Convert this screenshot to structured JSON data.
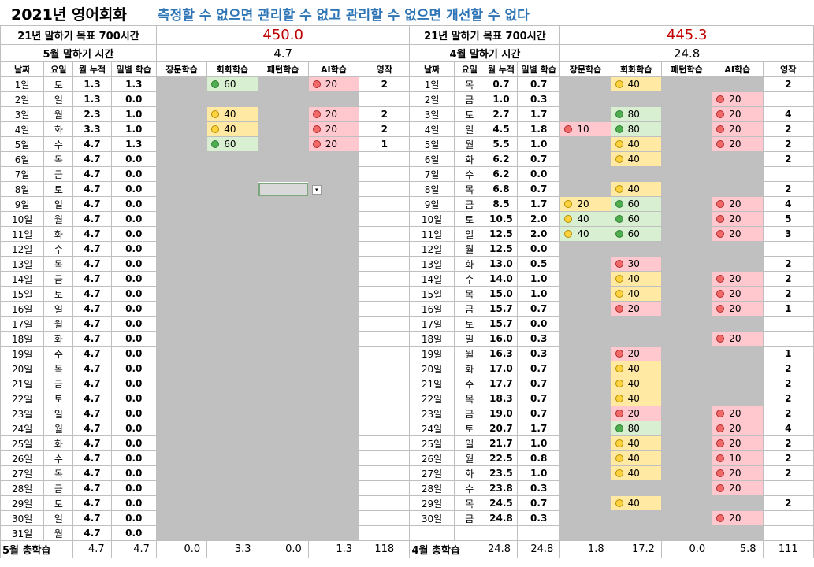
{
  "title": {
    "main": "2021년 영어회화",
    "motto": "측정할 수 없으면 관리할 수 없고 관리할 수 없으면 개선할 수 없다"
  },
  "may": {
    "goal_label": "21년 말하기 목표 700시간",
    "goal_value": "450.0",
    "month_label": "5월 말하기 시간",
    "month_value": "4.7",
    "headers": [
      "날짜",
      "요일",
      "월 누적",
      "일별 학습",
      "장문학습",
      "회화학습",
      "패턴학습",
      "AI학습",
      "영작"
    ],
    "rows": [
      [
        "1일",
        "토",
        "1.3",
        "1.3",
        "",
        {
          "c": "green",
          "v": "60"
        },
        "",
        {
          "c": "red",
          "v": "20"
        },
        "2"
      ],
      [
        "2일",
        "일",
        "1.3",
        "0.0",
        "",
        "",
        "",
        "",
        ""
      ],
      [
        "3일",
        "월",
        "2.3",
        "1.0",
        "",
        {
          "c": "yellow",
          "v": "40"
        },
        "",
        {
          "c": "red",
          "v": "20"
        },
        "2"
      ],
      [
        "4일",
        "화",
        "3.3",
        "1.0",
        "",
        {
          "c": "yellow",
          "v": "40"
        },
        "",
        {
          "c": "red",
          "v": "20"
        },
        "2"
      ],
      [
        "5일",
        "수",
        "4.7",
        "1.3",
        "",
        {
          "c": "green",
          "v": "60"
        },
        "",
        {
          "c": "red",
          "v": "20"
        },
        "1"
      ],
      [
        "6일",
        "목",
        "4.7",
        "0.0",
        "",
        "",
        "",
        "",
        ""
      ],
      [
        "7일",
        "금",
        "4.7",
        "0.0",
        "",
        "",
        "",
        "",
        ""
      ],
      [
        "8일",
        "토",
        "4.7",
        "0.0",
        "",
        "",
        "",
        "",
        ""
      ],
      [
        "9일",
        "일",
        "4.7",
        "0.0",
        "",
        "",
        "",
        "",
        ""
      ],
      [
        "10일",
        "월",
        "4.7",
        "0.0",
        "",
        "",
        "",
        "",
        ""
      ],
      [
        "11일",
        "화",
        "4.7",
        "0.0",
        "",
        "",
        "",
        "",
        ""
      ],
      [
        "12일",
        "수",
        "4.7",
        "0.0",
        "",
        "",
        "",
        "",
        ""
      ],
      [
        "13일",
        "목",
        "4.7",
        "0.0",
        "",
        "",
        "",
        "",
        ""
      ],
      [
        "14일",
        "금",
        "4.7",
        "0.0",
        "",
        "",
        "",
        "",
        ""
      ],
      [
        "15일",
        "토",
        "4.7",
        "0.0",
        "",
        "",
        "",
        "",
        ""
      ],
      [
        "16일",
        "일",
        "4.7",
        "0.0",
        "",
        "",
        "",
        "",
        ""
      ],
      [
        "17일",
        "월",
        "4.7",
        "0.0",
        "",
        "",
        "",
        "",
        ""
      ],
      [
        "18일",
        "화",
        "4.7",
        "0.0",
        "",
        "",
        "",
        "",
        ""
      ],
      [
        "19일",
        "수",
        "4.7",
        "0.0",
        "",
        "",
        "",
        "",
        ""
      ],
      [
        "20일",
        "목",
        "4.7",
        "0.0",
        "",
        "",
        "",
        "",
        ""
      ],
      [
        "21일",
        "금",
        "4.7",
        "0.0",
        "",
        "",
        "",
        "",
        ""
      ],
      [
        "22일",
        "토",
        "4.7",
        "0.0",
        "",
        "",
        "",
        "",
        ""
      ],
      [
        "23일",
        "일",
        "4.7",
        "0.0",
        "",
        "",
        "",
        "",
        ""
      ],
      [
        "24일",
        "월",
        "4.7",
        "0.0",
        "",
        "",
        "",
        "",
        ""
      ],
      [
        "25일",
        "화",
        "4.7",
        "0.0",
        "",
        "",
        "",
        "",
        ""
      ],
      [
        "26일",
        "수",
        "4.7",
        "0.0",
        "",
        "",
        "",
        "",
        ""
      ],
      [
        "27일",
        "목",
        "4.7",
        "0.0",
        "",
        "",
        "",
        "",
        ""
      ],
      [
        "28일",
        "금",
        "4.7",
        "0.0",
        "",
        "",
        "",
        "",
        ""
      ],
      [
        "29일",
        "토",
        "4.7",
        "0.0",
        "",
        "",
        "",
        "",
        ""
      ],
      [
        "30일",
        "일",
        "4.7",
        "0.0",
        "",
        "",
        "",
        "",
        ""
      ],
      [
        "31일",
        "월",
        "4.7",
        "0.0",
        "",
        "",
        "",
        "",
        ""
      ]
    ],
    "totals": [
      "5월 총학습",
      "4.7",
      "4.7",
      "0.0",
      "3.3",
      "0.0",
      "1.3",
      "118"
    ]
  },
  "april": {
    "goal_label": "21년 말하기 목표 700시간",
    "goal_value": "445.3",
    "month_label": "4월 말하기 시간",
    "month_value": "24.8",
    "headers": [
      "날짜",
      "요일",
      "월 누적",
      "일별 학습",
      "장문학습",
      "회화학습",
      "패턴학습",
      "AI학습",
      "영작"
    ],
    "rows": [
      [
        "1일",
        "목",
        "0.7",
        "0.7",
        "",
        {
          "c": "yellow",
          "v": "40"
        },
        "",
        "",
        "2"
      ],
      [
        "2일",
        "금",
        "1.0",
        "0.3",
        "",
        "",
        "",
        {
          "c": "red",
          "v": "20"
        },
        ""
      ],
      [
        "3일",
        "토",
        "2.7",
        "1.7",
        "",
        {
          "c": "green",
          "v": "80"
        },
        "",
        {
          "c": "red",
          "v": "20"
        },
        "4"
      ],
      [
        "4일",
        "일",
        "4.5",
        "1.8",
        {
          "c": "red",
          "v": "10",
          "bg": "pink"
        },
        {
          "c": "green",
          "v": "80"
        },
        "",
        {
          "c": "red",
          "v": "20"
        },
        "2"
      ],
      [
        "5일",
        "월",
        "5.5",
        "1.0",
        "",
        {
          "c": "yellow",
          "v": "40"
        },
        "",
        {
          "c": "red",
          "v": "20"
        },
        "2"
      ],
      [
        "6일",
        "화",
        "6.2",
        "0.7",
        "",
        {
          "c": "yellow",
          "v": "40"
        },
        "",
        "",
        "2"
      ],
      [
        "7일",
        "수",
        "6.2",
        "0.0",
        "",
        "",
        "",
        "",
        ""
      ],
      [
        "8일",
        "목",
        "6.8",
        "0.7",
        "",
        {
          "c": "yellow",
          "v": "40"
        },
        "",
        "",
        "2"
      ],
      [
        "9일",
        "금",
        "8.5",
        "1.7",
        {
          "c": "yellow",
          "v": "20",
          "bg": "yellow"
        },
        {
          "c": "green",
          "v": "60"
        },
        "",
        {
          "c": "red",
          "v": "20"
        },
        "4"
      ],
      [
        "10일",
        "토",
        "10.5",
        "2.0",
        {
          "c": "yellow",
          "v": "40",
          "bg": "green"
        },
        {
          "c": "green",
          "v": "60"
        },
        "",
        {
          "c": "red",
          "v": "20"
        },
        "5"
      ],
      [
        "11일",
        "일",
        "12.5",
        "2.0",
        {
          "c": "yellow",
          "v": "40",
          "bg": "green"
        },
        {
          "c": "green",
          "v": "60"
        },
        "",
        {
          "c": "red",
          "v": "20"
        },
        "3"
      ],
      [
        "12일",
        "월",
        "12.5",
        "0.0",
        "",
        "",
        "",
        "",
        ""
      ],
      [
        "13일",
        "화",
        "13.0",
        "0.5",
        "",
        {
          "c": "red",
          "v": "30"
        },
        "",
        "",
        "2"
      ],
      [
        "14일",
        "수",
        "14.0",
        "1.0",
        "",
        {
          "c": "yellow",
          "v": "40"
        },
        "",
        {
          "c": "red",
          "v": "20"
        },
        "2"
      ],
      [
        "15일",
        "목",
        "15.0",
        "1.0",
        "",
        {
          "c": "yellow",
          "v": "40"
        },
        "",
        {
          "c": "red",
          "v": "20"
        },
        "2"
      ],
      [
        "16일",
        "금",
        "15.7",
        "0.7",
        "",
        {
          "c": "red",
          "v": "20"
        },
        "",
        {
          "c": "red",
          "v": "20"
        },
        "1"
      ],
      [
        "17일",
        "토",
        "15.7",
        "0.0",
        "",
        "",
        "",
        "",
        ""
      ],
      [
        "18일",
        "일",
        "16.0",
        "0.3",
        "",
        "",
        "",
        {
          "c": "red",
          "v": "20"
        },
        ""
      ],
      [
        "19일",
        "월",
        "16.3",
        "0.3",
        "",
        {
          "c": "red",
          "v": "20"
        },
        "",
        "",
        "1"
      ],
      [
        "20일",
        "화",
        "17.0",
        "0.7",
        "",
        {
          "c": "yellow",
          "v": "40"
        },
        "",
        "",
        "2"
      ],
      [
        "21일",
        "수",
        "17.7",
        "0.7",
        "",
        {
          "c": "yellow",
          "v": "40"
        },
        "",
        "",
        "2"
      ],
      [
        "22일",
        "목",
        "18.3",
        "0.7",
        "",
        {
          "c": "yellow",
          "v": "40"
        },
        "",
        "",
        "2"
      ],
      [
        "23일",
        "금",
        "19.0",
        "0.7",
        "",
        {
          "c": "red",
          "v": "20"
        },
        "",
        {
          "c": "red",
          "v": "20"
        },
        "2"
      ],
      [
        "24일",
        "토",
        "20.7",
        "1.7",
        "",
        {
          "c": "green",
          "v": "80"
        },
        "",
        {
          "c": "red",
          "v": "20"
        },
        "4"
      ],
      [
        "25일",
        "일",
        "21.7",
        "1.0",
        "",
        {
          "c": "yellow",
          "v": "40"
        },
        "",
        {
          "c": "red",
          "v": "20"
        },
        "2"
      ],
      [
        "26일",
        "월",
        "22.5",
        "0.8",
        "",
        {
          "c": "yellow",
          "v": "40"
        },
        "",
        {
          "c": "red",
          "v": "10",
          "bg": "pink"
        },
        "2"
      ],
      [
        "27일",
        "화",
        "23.5",
        "1.0",
        "",
        {
          "c": "yellow",
          "v": "40"
        },
        "",
        {
          "c": "red",
          "v": "20"
        },
        "2"
      ],
      [
        "28일",
        "수",
        "23.8",
        "0.3",
        "",
        "",
        "",
        {
          "c": "red",
          "v": "20"
        },
        ""
      ],
      [
        "29일",
        "목",
        "24.5",
        "0.7",
        "",
        {
          "c": "yellow",
          "v": "40"
        },
        "",
        "",
        "2"
      ],
      [
        "30일",
        "금",
        "24.8",
        "0.3",
        "",
        "",
        "",
        {
          "c": "red",
          "v": "20"
        },
        ""
      ],
      [
        "",
        "",
        "",
        "",
        "",
        "",
        "",
        "",
        ""
      ]
    ],
    "totals": [
      "4월 총학습",
      "24.8",
      "24.8",
      "1.8",
      "17.2",
      "0.0",
      "5.8",
      "111"
    ]
  },
  "icons": {
    "green": "green-circle-icon",
    "yellow": "yellow-circle-icon",
    "red": "red-circle-icon",
    "dropdown": "dropdown-arrow-icon",
    "comment": "comment-indicator-icon"
  },
  "colors": {
    "accent_text": "#c00000",
    "motto_text": "#2e75b6",
    "gray_fill": "#c0c0c0",
    "green_fill": "#d8efd2",
    "yellow_fill": "#ffe9a3",
    "pink_fill": "#ffc7ce"
  }
}
